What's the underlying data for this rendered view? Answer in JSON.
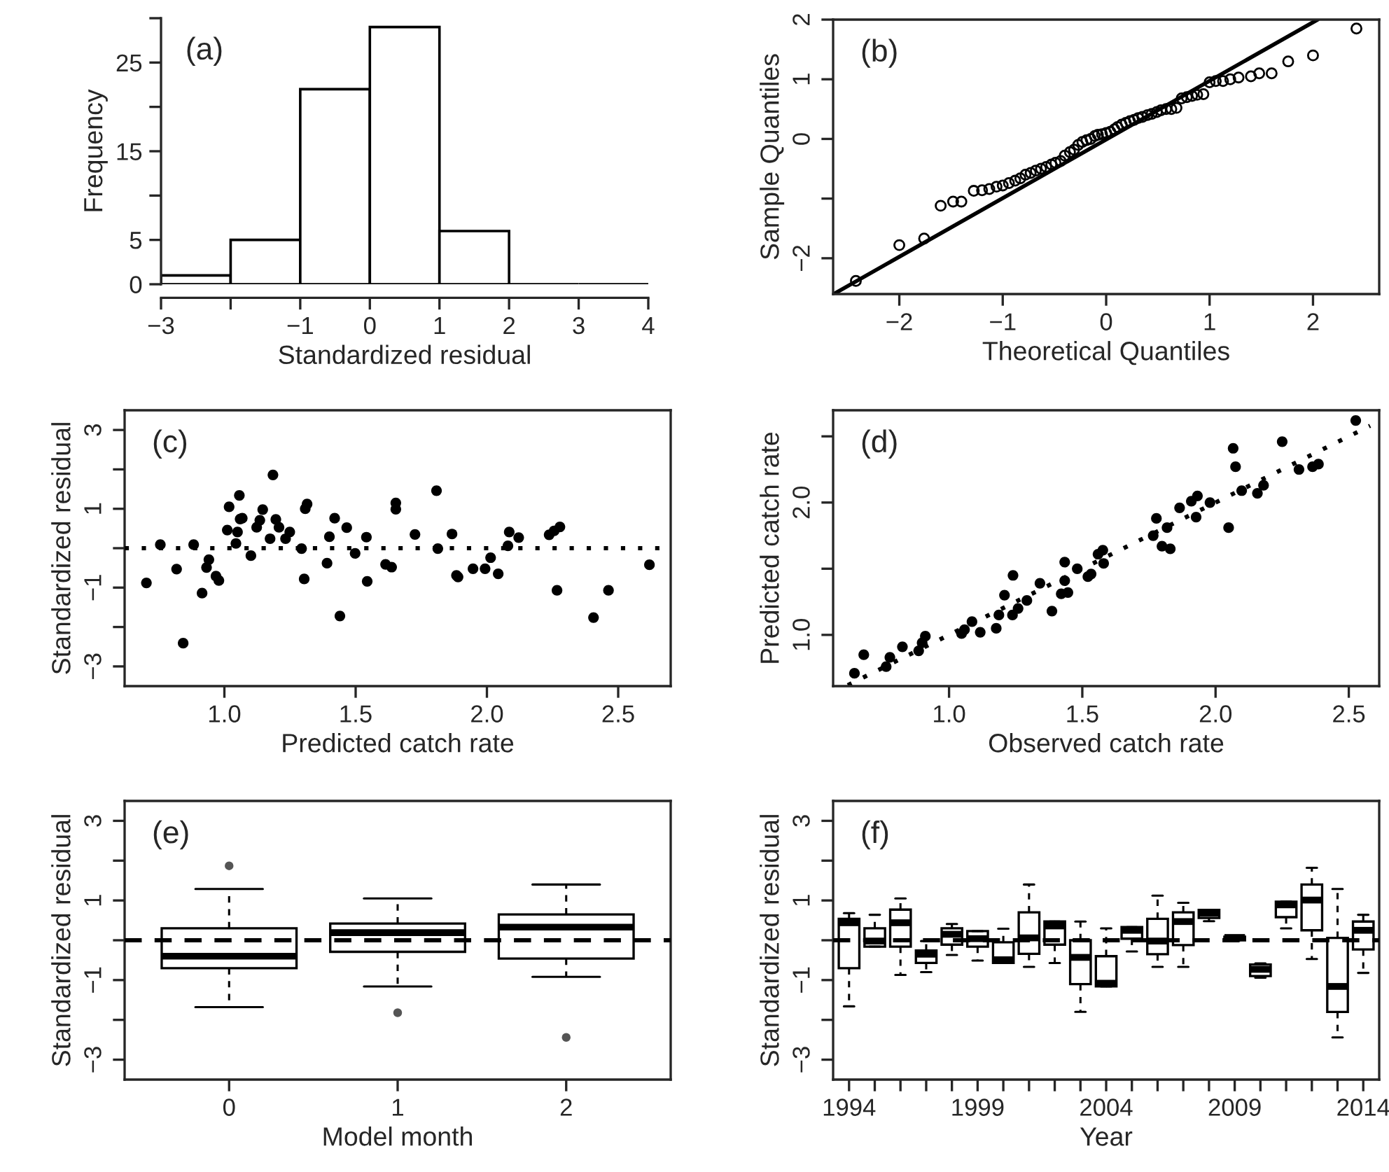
{
  "chart_data": [
    {
      "type": "histogram",
      "annotations": [
        "(a)"
      ],
      "xlabel": "Standardized residual",
      "ylabel": "Frequency",
      "bins": [
        -3,
        -2,
        -1,
        0,
        1,
        2,
        3,
        4
      ],
      "values": [
        1,
        5,
        22,
        29,
        6,
        0,
        0
      ],
      "xlim": [
        -3,
        4
      ],
      "xticks": [
        {
          "value": -3,
          "label": "−3"
        },
        {
          "value": -2,
          "label": null
        },
        {
          "value": -1,
          "label": "−1"
        },
        0,
        1,
        2,
        3,
        4
      ],
      "ylim": [
        0,
        30
      ],
      "yticks": [
        0,
        5,
        {
          "value": 10,
          "label": null
        },
        15,
        {
          "value": 20,
          "label": null
        },
        25,
        {
          "value": 30,
          "label": null
        }
      ]
    },
    {
      "type": "scatter",
      "annotations": [
        "(b)"
      ],
      "xlabel": "Theoretical Quantiles",
      "ylabel": "Sample Quantiles",
      "series": [
        {
          "type": "scatter",
          "marker": "circle",
          "x": [
            -2.42,
            -2.0,
            -1.76,
            -1.6,
            -1.48,
            -1.4,
            -1.28,
            -1.2,
            -1.13,
            -1.06,
            -1.0,
            -0.94,
            -0.88,
            -0.83,
            -0.78,
            -0.73,
            -0.68,
            -0.63,
            -0.58,
            -0.53,
            -0.49,
            -0.44,
            -0.4,
            -0.35,
            -0.31,
            -0.27,
            -0.23,
            -0.19,
            -0.15,
            -0.11,
            -0.08,
            -0.04,
            0.0,
            0.04,
            0.08,
            0.11,
            0.15,
            0.19,
            0.23,
            0.27,
            0.31,
            0.35,
            0.4,
            0.44,
            0.49,
            0.53,
            0.58,
            0.63,
            0.68,
            0.73,
            0.78,
            0.83,
            0.88,
            0.94,
            1.0,
            1.06,
            1.13,
            1.2,
            1.28,
            1.4,
            1.48,
            1.6,
            1.76,
            2.0,
            2.42
          ],
          "values": [
            -2.38,
            -1.78,
            -1.67,
            -1.12,
            -1.05,
            -1.05,
            -0.87,
            -0.86,
            -0.84,
            -0.8,
            -0.78,
            -0.74,
            -0.7,
            -0.66,
            -0.6,
            -0.57,
            -0.53,
            -0.5,
            -0.47,
            -0.43,
            -0.4,
            -0.37,
            -0.28,
            -0.22,
            -0.18,
            -0.1,
            -0.05,
            -0.02,
            0.0,
            0.05,
            0.07,
            0.08,
            0.1,
            0.12,
            0.16,
            0.2,
            0.24,
            0.27,
            0.3,
            0.32,
            0.35,
            0.37,
            0.4,
            0.42,
            0.45,
            0.48,
            0.5,
            0.5,
            0.52,
            0.68,
            0.7,
            0.72,
            0.74,
            0.75,
            0.95,
            0.97,
            0.97,
            1.0,
            1.03,
            1.05,
            1.1,
            1.1,
            1.3,
            1.4,
            1.85
          ]
        },
        {
          "type": "line",
          "line_style": "solid",
          "marker": "none",
          "x": [
            -2.635,
            2.045
          ],
          "values": [
            -2.6,
            2.0
          ]
        }
      ],
      "xlim": [
        -2.64,
        2.64
      ],
      "xticks": [
        {
          "value": -2,
          "label": "−2"
        },
        {
          "value": -1,
          "label": "−1"
        },
        0,
        1,
        2
      ],
      "ylim": [
        -2.6,
        2.0
      ],
      "yticks": [
        {
          "value": -2,
          "label": "−2"
        },
        {
          "value": -1,
          "label": null
        },
        0,
        1,
        2
      ]
    },
    {
      "type": "scatter",
      "annotations": [
        "(c)"
      ],
      "xlabel": "Predicted catch rate",
      "ylabel": "Standardized residual",
      "marker": "circle",
      "x": [
        0.703,
        0.756,
        0.818,
        0.843,
        0.883,
        0.915,
        0.932,
        0.941,
        0.968,
        0.979,
        1.018,
        1.011,
        1.05,
        1.057,
        1.044,
        1.06,
        1.068,
        1.101,
        1.123,
        1.135,
        1.146,
        1.174,
        1.185,
        1.196,
        1.208,
        1.233,
        1.249,
        1.294,
        1.304,
        1.308,
        1.315,
        1.391,
        1.4,
        1.42,
        1.44,
        1.466,
        1.498,
        1.541,
        1.544,
        1.614,
        1.637,
        1.653,
        1.653,
        1.726,
        1.808,
        1.813,
        1.867,
        1.884,
        1.89,
        1.947,
        1.993,
        2.014,
        2.043,
        2.08,
        2.085,
        2.121,
        2.237,
        2.256,
        2.278,
        2.267,
        2.406,
        2.463,
        2.619
      ],
      "values": [
        -0.88,
        0.09,
        -0.53,
        -2.41,
        0.09,
        -1.14,
        -0.49,
        -0.29,
        -0.71,
        -0.82,
        1.05,
        0.46,
        0.41,
        1.34,
        0.12,
        0.74,
        0.76,
        -0.19,
        0.53,
        0.71,
        0.98,
        0.24,
        1.86,
        0.73,
        0.53,
        0.24,
        0.41,
        -0.01,
        -0.78,
        1.0,
        1.12,
        -0.38,
        0.29,
        0.76,
        -1.72,
        0.52,
        -0.13,
        0.28,
        -0.84,
        -0.41,
        -0.48,
        1.15,
        0.99,
        0.35,
        1.46,
        -0.01,
        0.36,
        -0.69,
        -0.73,
        -0.52,
        -0.52,
        -0.24,
        -0.65,
        0.06,
        0.41,
        0.27,
        0.34,
        0.44,
        0.54,
        -1.07,
        -1.76,
        -1.07,
        -0.42
      ],
      "ref_lines": [
        {
          "axis": "y",
          "value": 0,
          "line_style": "dotted"
        }
      ],
      "xlim": [
        0.62,
        2.7
      ],
      "xticks": [
        {
          "value": 1.0,
          "label": "1.0"
        },
        {
          "value": 1.5,
          "label": "1.5"
        },
        {
          "value": 2.0,
          "label": "2.0"
        },
        {
          "value": 2.5,
          "label": "2.5"
        }
      ],
      "ylim": [
        -3.5,
        3.5
      ],
      "yticks": [
        {
          "value": -3,
          "label": "−3"
        },
        {
          "value": -2,
          "label": null
        },
        {
          "value": -1,
          "label": "−1"
        },
        {
          "value": 0,
          "label": null
        },
        1,
        {
          "value": 2,
          "label": null
        },
        3
      ]
    },
    {
      "type": "scatter",
      "annotations": [
        "(d)"
      ],
      "xlabel": "Observed catch rate",
      "ylabel": "Predicted catch rate",
      "marker": "circle",
      "x": [
        0.645,
        0.68,
        0.764,
        0.778,
        0.825,
        0.886,
        0.899,
        0.911,
        1.047,
        1.058,
        1.086,
        1.117,
        1.177,
        1.187,
        1.208,
        1.24,
        1.238,
        1.259,
        1.292,
        1.341,
        1.386,
        1.421,
        1.434,
        1.434,
        1.446,
        1.481,
        1.521,
        1.533,
        1.559,
        1.577,
        1.58,
        1.766,
        1.778,
        1.799,
        1.818,
        1.83,
        1.865,
        1.909,
        1.927,
        1.932,
        1.979,
        2.049,
        2.066,
        2.075,
        2.098,
        2.157,
        2.18,
        2.25,
        2.313,
        2.364,
        2.386,
        2.526
      ],
      "values": [
        0.71,
        0.85,
        0.76,
        0.83,
        0.91,
        0.88,
        0.94,
        0.99,
        1.01,
        1.04,
        1.1,
        1.02,
        1.05,
        1.15,
        1.3,
        1.45,
        1.15,
        1.2,
        1.26,
        1.39,
        1.18,
        1.31,
        1.55,
        1.41,
        1.32,
        1.5,
        1.44,
        1.46,
        1.61,
        1.64,
        1.54,
        1.75,
        1.88,
        1.67,
        1.81,
        1.65,
        1.96,
        2.01,
        1.89,
        2.05,
        2.0,
        1.81,
        2.41,
        2.27,
        2.09,
        2.07,
        2.13,
        2.46,
        2.25,
        2.27,
        2.29,
        2.62
      ],
      "series": [
        {
          "type": "line",
          "line_style": "dotted",
          "marker": "none",
          "x": [
            0.62,
            2.58
          ],
          "values": [
            0.62,
            2.58
          ]
        }
      ],
      "xlim": [
        0.565,
        2.614
      ],
      "xticks": [
        {
          "value": 1.0,
          "label": "1.0"
        },
        {
          "value": 1.5,
          "label": "1.5"
        },
        {
          "value": 2.0,
          "label": "2.0"
        },
        {
          "value": 2.5,
          "label": "2.5"
        }
      ],
      "ylim": [
        0.613,
        2.697
      ],
      "yticks": [
        {
          "value": 1.0,
          "label": "1.0"
        },
        {
          "value": 1.5,
          "label": null
        },
        {
          "value": 2.0,
          "label": "2.0"
        },
        {
          "value": 2.5,
          "label": null
        }
      ]
    },
    {
      "type": "box",
      "annotations": [
        "(e)"
      ],
      "xlabel": "Model month",
      "ylabel": "Standardized residual",
      "categories": [
        "0",
        "1",
        "2"
      ],
      "boxes": [
        {
          "low": -1.68,
          "q1": -0.7,
          "median": -0.4,
          "q3": 0.3,
          "high": 1.29,
          "outliers": [
            1.87
          ]
        },
        {
          "low": -1.16,
          "q1": -0.29,
          "median": 0.19,
          "q3": 0.42,
          "high": 1.05,
          "outliers": [
            -1.82
          ]
        },
        {
          "low": -0.92,
          "q1": -0.46,
          "median": 0.33,
          "q3": 0.65,
          "high": 1.4,
          "outliers": [
            -2.44
          ]
        }
      ],
      "ref_lines": [
        {
          "axis": "y",
          "value": 0,
          "line_style": "dashed"
        }
      ],
      "ylim": [
        -3.5,
        3.5
      ],
      "yticks": [
        {
          "value": -3,
          "label": "−3"
        },
        {
          "value": -2,
          "label": null
        },
        {
          "value": -1,
          "label": "−1"
        },
        {
          "value": 0,
          "label": null
        },
        1,
        {
          "value": 2,
          "label": null
        },
        3
      ]
    },
    {
      "type": "box",
      "annotations": [
        "(f)"
      ],
      "xlabel": "Year",
      "ylabel": "Standardized residual",
      "categories": [
        "1994",
        null,
        null,
        null,
        null,
        "1999",
        null,
        null,
        null,
        null,
        "2004",
        null,
        null,
        null,
        null,
        "2009",
        null,
        null,
        null,
        null,
        "2014"
      ],
      "boxes": [
        {
          "low": -1.66,
          "q1": -0.7,
          "median": 0.44,
          "q3": 0.54,
          "high": 0.68
        },
        {
          "low": -0.16,
          "q1": -0.16,
          "median": -0.02,
          "q3": 0.3,
          "high": 0.64
        },
        {
          "low": -0.87,
          "q1": -0.16,
          "median": 0.44,
          "q3": 0.77,
          "high": 1.05
        },
        {
          "low": -0.8,
          "q1": -0.57,
          "median": -0.35,
          "q3": -0.26,
          "high": -0.02
        },
        {
          "low": -0.37,
          "q1": -0.11,
          "median": 0.15,
          "q3": 0.3,
          "high": 0.41
        },
        {
          "low": -0.51,
          "q1": -0.16,
          "median": 0.04,
          "q3": 0.23,
          "high": 0.23
        },
        {
          "low": -0.57,
          "q1": -0.57,
          "median": -0.49,
          "q3": -0.05,
          "high": 0.29
        },
        {
          "low": -0.67,
          "q1": -0.34,
          "median": 0.06,
          "q3": 0.7,
          "high": 1.4
        },
        {
          "low": -0.57,
          "q1": -0.11,
          "median": 0.36,
          "q3": 0.47,
          "high": 0.47
        },
        {
          "low": -1.8,
          "q1": -1.1,
          "median": -0.43,
          "q3": 0.0,
          "high": 0.47
        },
        {
          "low": -1.16,
          "q1": -1.16,
          "median": -1.08,
          "q3": -0.4,
          "high": 0.3
        },
        {
          "low": -0.28,
          "q1": 0.04,
          "median": 0.25,
          "q3": 0.33,
          "high": 0.33
        },
        {
          "low": -0.67,
          "q1": -0.35,
          "median": -0.02,
          "q3": 0.54,
          "high": 1.12
        },
        {
          "low": -0.67,
          "q1": -0.12,
          "median": 0.47,
          "q3": 0.7,
          "high": 0.94
        },
        {
          "low": 0.48,
          "q1": 0.56,
          "median": 0.68,
          "q3": 0.76,
          "high": 0.76
        },
        {
          "low": 0.0,
          "q1": 0.0,
          "median": 0.07,
          "q3": 0.09,
          "high": 0.09
        },
        {
          "low": -0.94,
          "q1": -0.9,
          "median": -0.73,
          "q3": -0.61,
          "high": -0.58
        },
        {
          "low": 0.3,
          "q1": 0.58,
          "median": 0.89,
          "q3": 0.97,
          "high": 0.97
        },
        {
          "low": -0.47,
          "q1": 0.25,
          "median": 1.01,
          "q3": 1.4,
          "high": 1.82
        },
        {
          "low": -2.44,
          "q1": -1.8,
          "median": -1.16,
          "q3": 0.06,
          "high": 1.29
        },
        {
          "low": -0.82,
          "q1": -0.23,
          "median": 0.25,
          "q3": 0.47,
          "high": 0.64
        }
      ],
      "ref_lines": [
        {
          "axis": "y",
          "value": 0,
          "line_style": "dashed"
        }
      ],
      "ylim": [
        -3.5,
        3.5
      ],
      "yticks": [
        {
          "value": -3,
          "label": "−3"
        },
        {
          "value": -2,
          "label": null
        },
        {
          "value": -1,
          "label": "−1"
        },
        {
          "value": 0,
          "label": null
        },
        1,
        {
          "value": 2,
          "label": null
        },
        3
      ]
    }
  ]
}
